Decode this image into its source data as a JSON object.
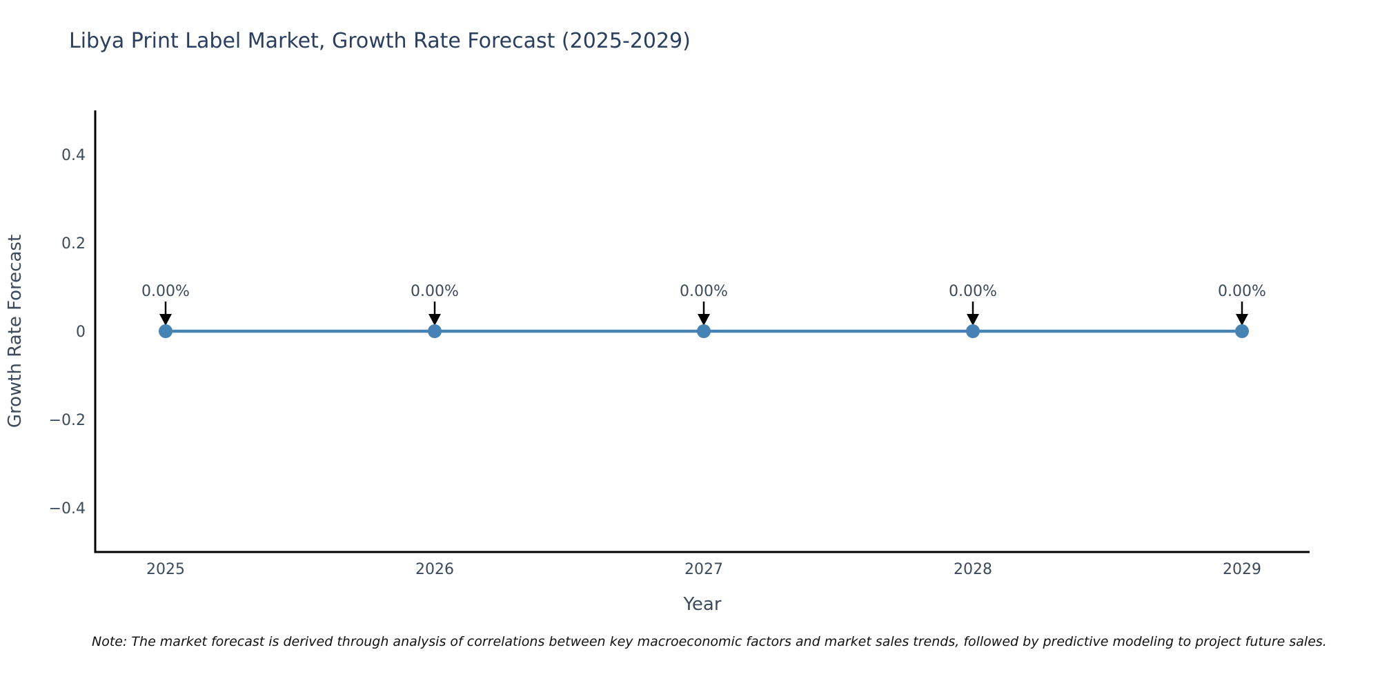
{
  "title": "Libya Print Label Market, Growth Rate Forecast (2025-2029)",
  "note": "Note: The market forecast is derived through analysis of correlations between key macroeconomic factors and market sales trends, followed by predictive modeling to project future sales.",
  "chart_data": {
    "type": "line",
    "title": "Libya Print Label Market, Growth Rate Forecast (2025-2029)",
    "xlabel": "Year",
    "ylabel": "Growth Rate Forecast",
    "categories": [
      "2025",
      "2026",
      "2027",
      "2028",
      "2029"
    ],
    "series": [
      {
        "name": "Growth Rate Forecast",
        "values": [
          0,
          0,
          0,
          0,
          0
        ]
      }
    ],
    "point_labels": [
      "0.00%",
      "0.00%",
      "0.00%",
      "0.00%",
      "0.00%"
    ],
    "ylim": [
      -0.5,
      0.5
    ],
    "yticks": [
      -0.4,
      -0.2,
      0,
      0.2,
      0.4
    ],
    "grid": false,
    "legend": "none",
    "colors": {
      "line": "#4682b4",
      "marker": "#4682b4",
      "axis_line": "#000000",
      "title_text": "#2a3f5f",
      "tick_text": "#3d4a5c",
      "axis_title_text": "#3d4a5c",
      "annotation_text": "#3d4a5c",
      "arrow": "#000000",
      "note_text": "#111111",
      "background": "#ffffff"
    }
  }
}
